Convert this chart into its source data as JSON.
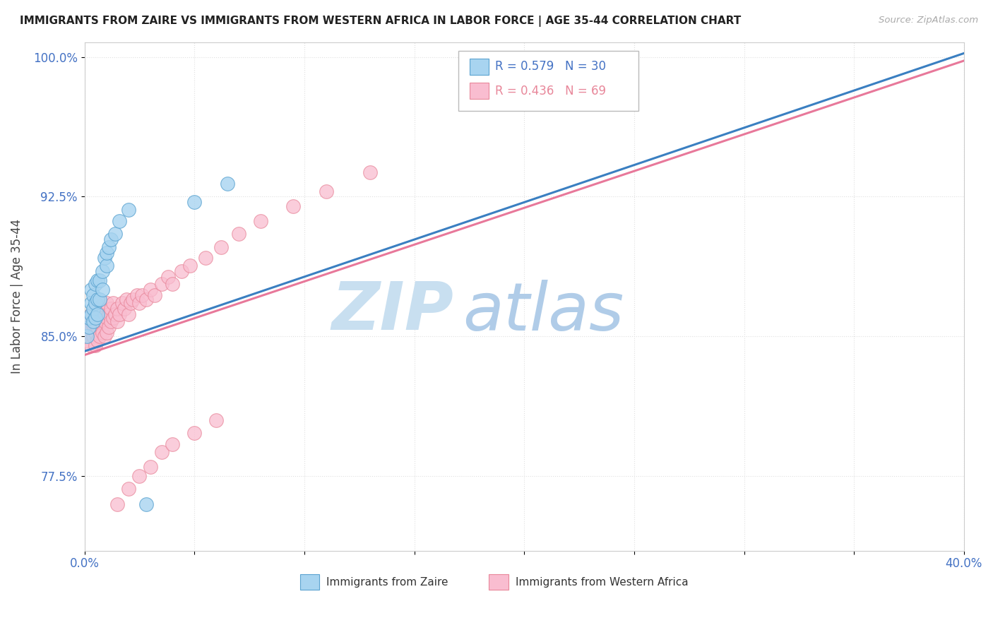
{
  "title": "IMMIGRANTS FROM ZAIRE VS IMMIGRANTS FROM WESTERN AFRICA IN LABOR FORCE | AGE 35-44 CORRELATION CHART",
  "source": "Source: ZipAtlas.com",
  "ylabel": "In Labor Force | Age 35-44",
  "xlim": [
    0.0,
    0.4
  ],
  "ylim": [
    0.735,
    1.008
  ],
  "xtick_vals": [
    0.0,
    0.05,
    0.1,
    0.15,
    0.2,
    0.25,
    0.3,
    0.35,
    0.4
  ],
  "xticklabels": [
    "0.0%",
    "",
    "",
    "",
    "",
    "",
    "",
    "",
    "40.0%"
  ],
  "ytick_vals": [
    0.775,
    0.85,
    0.925,
    1.0
  ],
  "yticklabels": [
    "77.5%",
    "85.0%",
    "92.5%",
    "100.0%"
  ],
  "legend_r1": "R = 0.579",
  "legend_n1": "N = 30",
  "legend_r2": "R = 0.436",
  "legend_n2": "N = 69",
  "color_zaire_fill": "#a8d4f0",
  "color_zaire_edge": "#5ba3d0",
  "color_western_fill": "#f9bdd0",
  "color_western_edge": "#e8879a",
  "color_line_zaire": "#3a7fc1",
  "color_line_western": "#e8789a",
  "watermark_zip": "ZIP",
  "watermark_atlas": "atlas",
  "watermark_color_zip": "#c8dff0",
  "watermark_color_atlas": "#b0cce8",
  "background_color": "#ffffff",
  "tick_color": "#4472c4",
  "title_color": "#222222",
  "source_color": "#aaaaaa",
  "ylabel_color": "#444444",
  "grid_color": "#e0e0e0",
  "zaire_x": [
    0.001,
    0.002,
    0.002,
    0.003,
    0.003,
    0.003,
    0.004,
    0.004,
    0.004,
    0.005,
    0.005,
    0.005,
    0.006,
    0.006,
    0.006,
    0.007,
    0.007,
    0.008,
    0.008,
    0.009,
    0.01,
    0.01,
    0.011,
    0.012,
    0.014,
    0.016,
    0.02,
    0.028,
    0.05,
    0.065
  ],
  "zaire_y": [
    0.85,
    0.855,
    0.86,
    0.862,
    0.868,
    0.875,
    0.858,
    0.865,
    0.872,
    0.86,
    0.868,
    0.878,
    0.862,
    0.87,
    0.88,
    0.87,
    0.88,
    0.875,
    0.885,
    0.892,
    0.888,
    0.895,
    0.898,
    0.902,
    0.905,
    0.912,
    0.918,
    0.76,
    0.922,
    0.932
  ],
  "western_x": [
    0.001,
    0.001,
    0.002,
    0.002,
    0.003,
    0.003,
    0.003,
    0.004,
    0.004,
    0.004,
    0.005,
    0.005,
    0.005,
    0.005,
    0.006,
    0.006,
    0.006,
    0.007,
    0.007,
    0.007,
    0.008,
    0.008,
    0.009,
    0.009,
    0.01,
    0.01,
    0.01,
    0.011,
    0.011,
    0.012,
    0.012,
    0.013,
    0.013,
    0.014,
    0.015,
    0.015,
    0.016,
    0.017,
    0.018,
    0.019,
    0.02,
    0.021,
    0.022,
    0.024,
    0.025,
    0.026,
    0.028,
    0.03,
    0.032,
    0.035,
    0.038,
    0.04,
    0.044,
    0.048,
    0.055,
    0.062,
    0.07,
    0.08,
    0.095,
    0.11,
    0.13,
    0.015,
    0.02,
    0.025,
    0.03,
    0.035,
    0.04,
    0.05,
    0.06
  ],
  "western_y": [
    0.848,
    0.854,
    0.852,
    0.858,
    0.845,
    0.855,
    0.862,
    0.85,
    0.856,
    0.862,
    0.845,
    0.852,
    0.858,
    0.865,
    0.848,
    0.855,
    0.862,
    0.85,
    0.858,
    0.865,
    0.852,
    0.86,
    0.85,
    0.858,
    0.852,
    0.86,
    0.868,
    0.855,
    0.862,
    0.858,
    0.865,
    0.86,
    0.868,
    0.862,
    0.858,
    0.865,
    0.862,
    0.868,
    0.865,
    0.87,
    0.862,
    0.868,
    0.87,
    0.872,
    0.868,
    0.872,
    0.87,
    0.875,
    0.872,
    0.878,
    0.882,
    0.878,
    0.885,
    0.888,
    0.892,
    0.898,
    0.905,
    0.912,
    0.92,
    0.928,
    0.938,
    0.76,
    0.768,
    0.775,
    0.78,
    0.788,
    0.792,
    0.798,
    0.805
  ],
  "line_zaire_x0": 0.0,
  "line_zaire_x1": 0.4,
  "line_zaire_y0": 0.842,
  "line_zaire_y1": 1.002,
  "line_western_x0": 0.0,
  "line_western_x1": 0.4,
  "line_western_y0": 0.84,
  "line_western_y1": 0.998
}
